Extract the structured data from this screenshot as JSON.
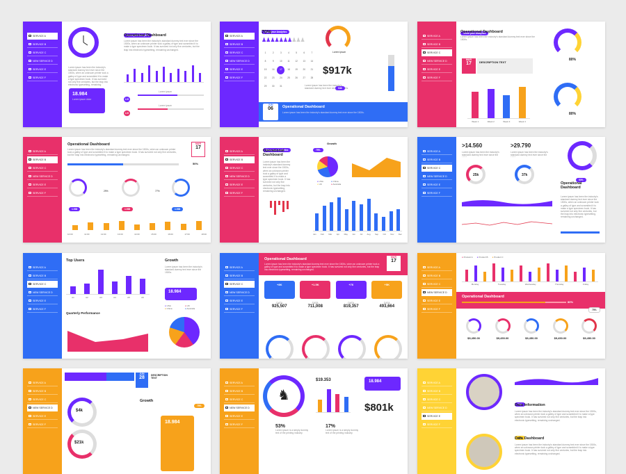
{
  "sidebar_items": [
    "SERVICE A",
    "SERVICE B",
    "SERVICE C",
    "NEW SERVICE D",
    "SERVICE E",
    "SERVICE F"
  ],
  "colors": {
    "purple": "#6d28ff",
    "blue": "#2f6df5",
    "pink": "#e8306a",
    "orange": "#f7a21b",
    "yellow": "#ffd335",
    "red": "#e2354a",
    "gray": "#ebebeb"
  },
  "s1": {
    "tag": "Show your Analytics",
    "title": "Operational Dashboard",
    "lorem": "Lorem ipsum has been the industry's standard dummy text ever since the 1500s, when an unknown printer took a galley of type and scrambled it to make a type specimen book. It has survived not only five centuries, but the leap into electronic typesetting, remaining unchanged.",
    "value": "18.984",
    "caption": "Lorem ipsum dolor",
    "row1": "I-VI",
    "row2": "I-VI",
    "row_label": "Lorem ipsum"
  },
  "s2": {
    "tag": "Show your Analytics",
    "pct": "70%",
    "value": "$917k",
    "chip": "94K",
    "lorem": "Lorem ipsum has been the industry's standard dummy text ever since the 1500s.",
    "month": "JUN",
    "day": "06",
    "title": "Operational Dashboard",
    "ring_caption": "Lorem Ipsum"
  },
  "s3": {
    "tag": "Show your Analytics",
    "title": "Operational Dashboard",
    "month": "MAR",
    "day": "17",
    "desc": "DESCRIPTION TEXT",
    "g1": "80%",
    "g2": "80%",
    "weeks": [
      "Week 1",
      "Week 2",
      "Week 3",
      "Week 4"
    ]
  },
  "s4": {
    "title": "Operational Dashboard",
    "month": "MAR",
    "day": "17",
    "pct": "50%",
    "chips": [
      "1.938",
      "1.938",
      "1.938"
    ],
    "p1": "29%",
    "p2": "77%",
    "hours": [
      "10:00",
      "11:00",
      "12:00",
      "13:00",
      "14:00",
      "15:00",
      "16:00",
      "17:00",
      "18:00"
    ]
  },
  "s5": {
    "tag": "Show your Analytics",
    "pill": "75%",
    "title": "Operational Dashboard",
    "growth": "Growth",
    "legend": [
      "USA",
      "China",
      "UK",
      "Australia"
    ],
    "months": [
      "Jan",
      "Feb",
      "Mar",
      "Apr",
      "May",
      "Jun",
      "Jul",
      "Aug",
      "Sep",
      "Oct",
      "Nov",
      "Dec"
    ]
  },
  "s6": {
    "v1": ">14.560",
    "v2": ">29.790",
    "r1": "25k",
    "r2": "37k",
    "g": "53%",
    "title": "Operational Dashboard"
  },
  "s7": {
    "top_users": "Top Users",
    "growth": "Growth",
    "quarterly": "Quarterly Performance",
    "value": "18.984",
    "legend": [
      "USA",
      "UK",
      "China",
      "Australia"
    ],
    "cats": [
      "A1",
      "A2",
      "A3",
      "A4",
      "A5",
      "A6"
    ]
  },
  "s8": {
    "title": "Operational Dashboard",
    "month": "MAR",
    "day": "17",
    "kpis": [
      {
        "chip": "+8K",
        "label": "DATA",
        "value": "925,507"
      },
      {
        "chip": "+1.5K",
        "label": "DATA",
        "value": "711,008"
      },
      {
        "chip": "+76",
        "label": "DATA",
        "value": "819,357"
      },
      {
        "chip": "+5K",
        "label": "DATA",
        "value": "493,664"
      }
    ]
  },
  "s9": {
    "title": "Operational Dashboard",
    "pct": "80%",
    "days": [
      "Monday",
      "Tuesday",
      "Wednesday",
      "Thursday",
      "Friday"
    ],
    "legend": [
      "Product A",
      "Product B",
      "Product C"
    ],
    "values": [
      "$9,450.00",
      "$9,450.00",
      "$9,450.00",
      "$9,450.00",
      "$9,450.00"
    ],
    "pill": "75%"
  },
  "s10": {
    "month": "JUN",
    "day": "28",
    "desc": "DESCRIPTION TEXT",
    "v1": "$4k",
    "v2": "$21k",
    "growth": "Growth",
    "value": "18.984",
    "pill": "75%"
  },
  "s11": {
    "v1": "$19.353",
    "value": "18.984",
    "big": "$801k",
    "p1": "53%",
    "p2": "17%",
    "lorem": "Lorem ipsum is a simply dummy text of the printing industry."
  },
  "s12": {
    "chip1": "76%",
    "title1": "Data Information",
    "chip2": "47%",
    "title2": "Data Dashboard"
  }
}
